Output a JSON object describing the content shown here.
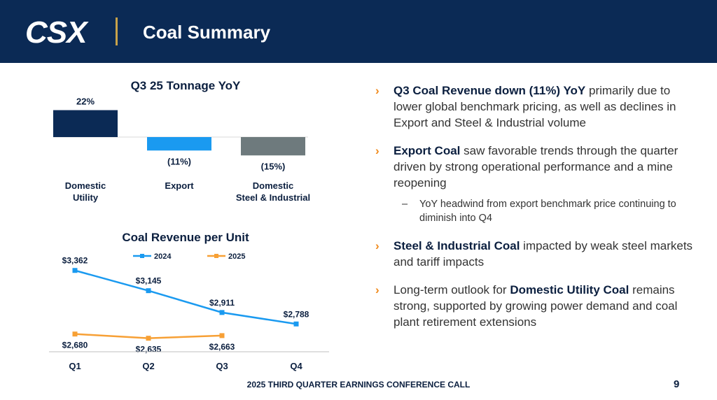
{
  "header": {
    "logo_text": "CSX",
    "title": "Coal Summary"
  },
  "chart_data": [
    {
      "type": "bar",
      "title": "Q3 25 Tonnage YoY",
      "categories": [
        "Domestic Utility",
        "Export",
        "Domestic Steel & Industrial"
      ],
      "category_lines": [
        [
          "Domestic",
          "Utility"
        ],
        [
          "Export"
        ],
        [
          "Domestic",
          "Steel & Industrial"
        ]
      ],
      "values": [
        22,
        -11,
        -15
      ],
      "value_labels": [
        "22%",
        "(11%)",
        "(15%)"
      ],
      "colors": [
        "#0b2a55",
        "#1a9af0",
        "#6e7a7d"
      ],
      "unit": "%"
    },
    {
      "type": "line",
      "title": "Coal Revenue per Unit",
      "categories": [
        "Q1",
        "Q2",
        "Q3",
        "Q4"
      ],
      "series": [
        {
          "name": "2024",
          "values": [
            3362,
            3145,
            2911,
            2788
          ],
          "labels": [
            "$3,362",
            "$3,145",
            "$2,911",
            "$2,788"
          ],
          "color": "#1a9af0"
        },
        {
          "name": "2025",
          "values": [
            2680,
            2635,
            2663,
            null
          ],
          "labels": [
            "$2,680",
            "$2,635",
            "$2,663",
            null
          ],
          "color": "#f7a035"
        }
      ],
      "ylim": [
        2400,
        3600
      ],
      "legend": "top",
      "grid": false
    }
  ],
  "bullets": [
    {
      "bold": "Q3 Coal Revenue down (11%) YoY",
      "text": " primarily due to lower global benchmark pricing, as well as declines in Export and Steel & Industrial volume"
    },
    {
      "bold": "Export Coal",
      "text": " saw favorable trends through the quarter driven by strong operational performance and a mine reopening"
    },
    {
      "bold": "Steel & Industrial Coal",
      "text": " impacted by weak steel markets and tariff impacts"
    },
    {
      "pre": "Long-term outlook for ",
      "bold": "Domestic Utility Coal",
      "text": " remains strong, supported by growing power demand and coal plant retirement extensions"
    }
  ],
  "sub_bullet": "YoY headwind from export benchmark price continuing to diminish into Q4",
  "bullet_marker": "›",
  "sub_marker": "–",
  "footer": "2025 THIRD QUARTER EARNINGS CONFERENCE CALL",
  "page_number": "9"
}
